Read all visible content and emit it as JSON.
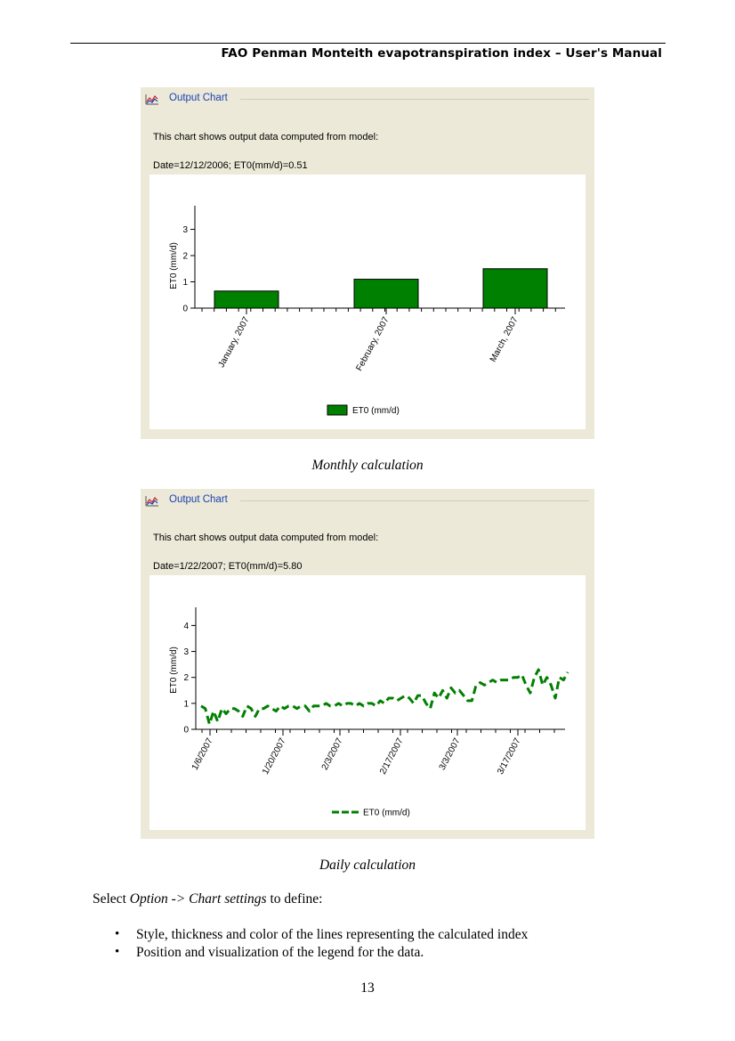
{
  "header": {
    "title": "FAO Penman Monteith evapotranspiration index – User's Manual"
  },
  "panels": [
    {
      "title": "Output Chart",
      "description": "This chart shows output data computed from model:",
      "info": "Date=12/12/2006; ET0(mm/d)=0.51",
      "caption": "Monthly calculation"
    },
    {
      "title": "Output Chart",
      "description": "This chart shows output data computed from model:",
      "info": "Date=1/22/2007; ET0(mm/d)=5.80",
      "caption": "Daily calculation"
    }
  ],
  "chart_data": [
    {
      "type": "bar",
      "categories": [
        "January, 2007",
        "February, 2007",
        "March, 2007"
      ],
      "series": [
        {
          "name": "ET0 (mm/d)",
          "values": [
            0.65,
            1.1,
            1.5
          ]
        }
      ],
      "ylabel": "ET0 (mm/d)",
      "yticks": [
        "0",
        "1",
        "2",
        "3"
      ],
      "ylim": [
        0,
        3.9
      ],
      "legend": "bottom-center",
      "color": "#008000"
    },
    {
      "type": "line",
      "x_ticks": [
        "1/6/2007",
        "1/20/2007",
        "2/3/2007",
        "2/17/2007",
        "3/3/2007",
        "3/17/2007"
      ],
      "series": [
        {
          "name": "ET0 (mm/d)",
          "values": [
            0.9,
            0.8,
            0.2,
            0.7,
            0.3,
            0.8,
            0.6,
            0.8,
            0.8,
            0.7,
            0.5,
            0.9,
            0.8,
            0.5,
            0.8,
            0.8,
            0.9,
            0.8,
            0.7,
            0.9,
            0.8,
            0.9,
            0.9,
            0.8,
            0.9,
            0.9,
            0.7,
            0.9,
            0.9,
            0.9,
            1.0,
            0.9,
            0.9,
            1.0,
            0.9,
            1.0,
            1.0,
            0.9,
            1.0,
            0.9,
            1.0,
            1.0,
            0.9,
            1.1,
            1.0,
            1.2,
            1.2,
            1.1,
            1.2,
            1.3,
            1.2,
            1.0,
            1.3,
            1.3,
            1.0,
            0.8,
            1.4,
            1.2,
            1.5,
            1.2,
            1.6,
            1.4,
            1.5,
            1.3,
            1.1,
            1.1,
            1.7,
            1.8,
            1.7,
            1.8,
            1.9,
            1.8,
            1.9,
            1.9,
            1.9,
            2.0,
            2.0,
            2.1,
            1.7,
            1.4,
            2.0,
            2.3,
            1.7,
            2.0,
            1.7,
            1.2,
            2.0,
            1.9,
            2.2
          ]
        }
      ],
      "ylabel": "ET0 (mm/d)",
      "yticks": [
        "0",
        "1",
        "2",
        "3",
        "4"
      ],
      "ylim": [
        0,
        4.7
      ],
      "legend": "bottom-center",
      "color": "#008000"
    }
  ],
  "body": {
    "intro_prefix": "Select ",
    "intro_option": "Option -> Chart settings",
    "intro_suffix": " to define:",
    "bullets": [
      "Style, thickness and color of the lines representing the calculated index",
      "Position and visualization of the legend for the data."
    ],
    "bullet_glyph": "•"
  },
  "page_number": "13"
}
